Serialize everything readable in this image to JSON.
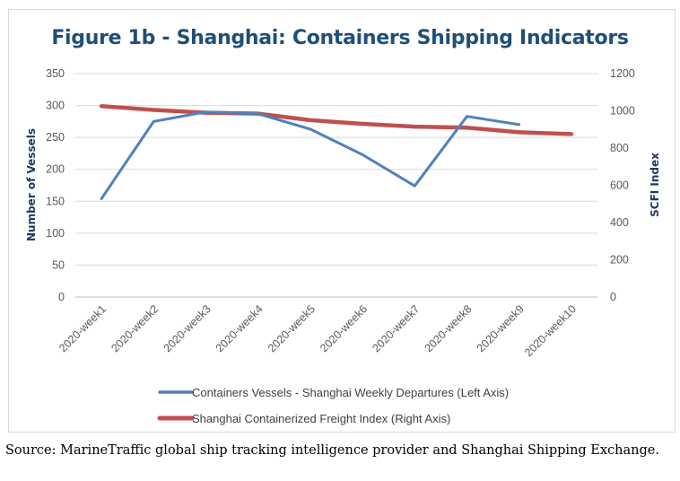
{
  "chart_data": {
    "type": "line",
    "title": "Figure 1b - Shanghai: Containers Shipping Indicators",
    "categories": [
      "2020-week1",
      "2020-week2",
      "2020-week3",
      "2020-week4",
      "2020-week5",
      "2020-week6",
      "2020-week7",
      "2020-week8",
      "2020-week9",
      "2020-week10"
    ],
    "y_left": {
      "label": "Number of Vessels",
      "ylim": [
        0,
        350
      ],
      "ticks": [
        0,
        50,
        100,
        150,
        200,
        250,
        300,
        350
      ]
    },
    "y_right": {
      "label": "SCFI Index",
      "ylim": [
        0,
        1200
      ],
      "ticks": [
        0,
        200,
        400,
        600,
        800,
        1000,
        1200
      ]
    },
    "series": [
      {
        "name": "Containers Vessels - Shanghai Weekly Departures (Left Axis)",
        "axis": "left",
        "color": "#4f81bd",
        "values": [
          154,
          275,
          290,
          287,
          263,
          223,
          174,
          283,
          270,
          null
        ]
      },
      {
        "name": "Shanghai Containerized Freight Index (Right Axis)",
        "axis": "right",
        "color": "#c0504d",
        "values": [
          1025,
          1005,
          990,
          985,
          950,
          930,
          915,
          910,
          885,
          875
        ]
      }
    ],
    "grid": "horizontal",
    "legend_position": "bottom"
  },
  "source_note": "Source: MarineTraffic global ship tracking intelligence provider and Shanghai Shipping Exchange."
}
